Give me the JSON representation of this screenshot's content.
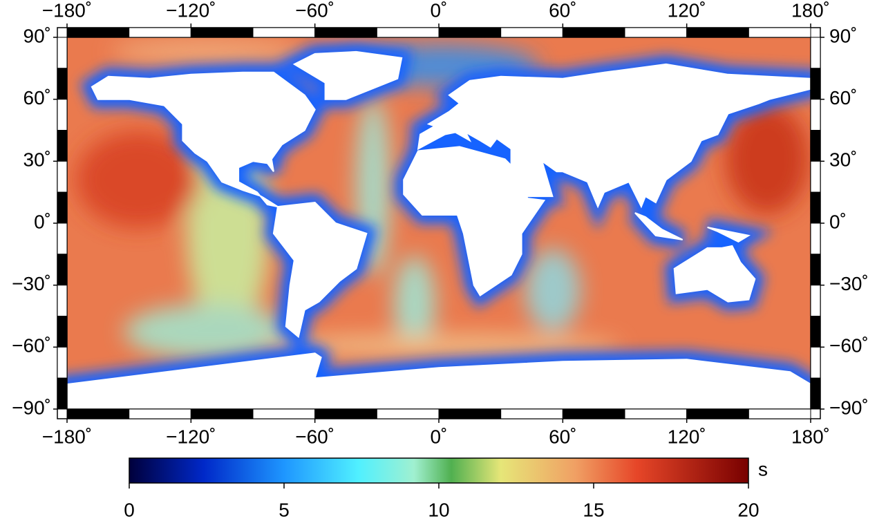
{
  "map": {
    "lon_ticks": [
      {
        "value": -180,
        "label": "−180˚"
      },
      {
        "value": -120,
        "label": "−120˚"
      },
      {
        "value": -60,
        "label": "−60˚"
      },
      {
        "value": 0,
        "label": "0˚"
      },
      {
        "value": 60,
        "label": "60˚"
      },
      {
        "value": 120,
        "label": "120˚"
      },
      {
        "value": 180,
        "label": "180˚"
      }
    ],
    "lat_ticks": [
      {
        "value": 90,
        "label": "90˚"
      },
      {
        "value": 60,
        "label": "60˚"
      },
      {
        "value": 30,
        "label": "30˚"
      },
      {
        "value": 0,
        "label": "0˚"
      },
      {
        "value": -30,
        "label": "−30˚"
      },
      {
        "value": -60,
        "label": "−60˚"
      },
      {
        "value": -90,
        "label": "−90˚"
      }
    ],
    "colorbar": {
      "lim": [
        0,
        20
      ],
      "ticks": [
        0,
        5,
        10,
        15,
        20
      ],
      "unit": "s"
    }
  }
}
